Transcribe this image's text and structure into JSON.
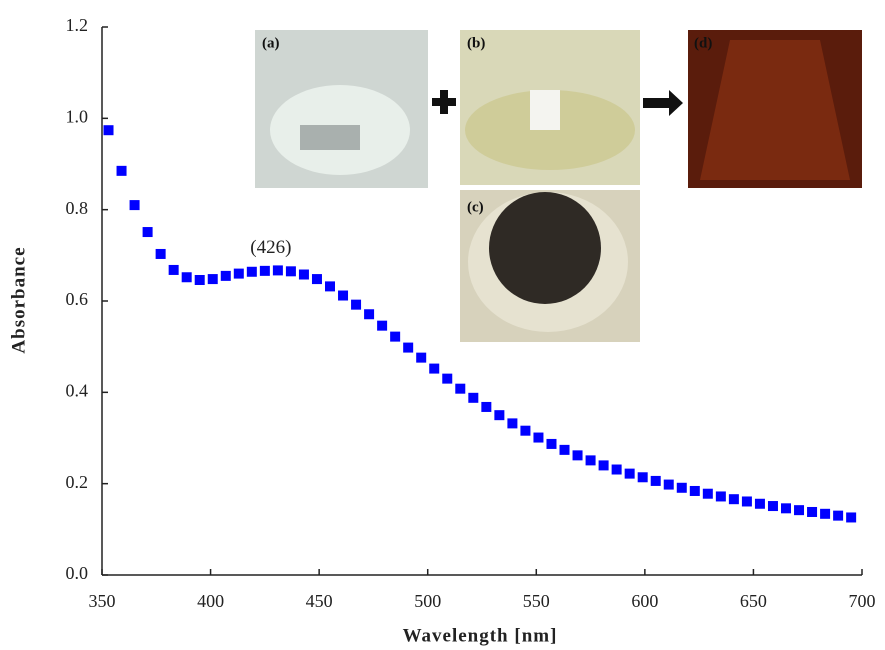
{
  "chart_data": {
    "type": "scatter",
    "x_label": "Wavelength [nm]",
    "y_label": "Absorbance",
    "annotation": "(426)",
    "insets": [
      "(a)",
      "(b)",
      "(c)",
      "(d)"
    ],
    "color": "#0000ff",
    "xlim": [
      350,
      700
    ],
    "ylim": [
      0,
      1.2
    ],
    "xticks": [
      350,
      400,
      450,
      500,
      550,
      600,
      650,
      700
    ],
    "yticks": [
      {
        "value": 0,
        "label": "0.0"
      },
      0.2,
      0.4,
      0.6,
      0.8,
      {
        "value": 1,
        "label": "1.0"
      },
      1.2
    ],
    "x": [
      353,
      359,
      365,
      371,
      377,
      383,
      389,
      395,
      401,
      407,
      413,
      419,
      425,
      431,
      437,
      443,
      449,
      455,
      461,
      467,
      473,
      479,
      485,
      491,
      497,
      503,
      509,
      515,
      521,
      527,
      533,
      539,
      545,
      551,
      557,
      563,
      569,
      575,
      581,
      587,
      593,
      599,
      605,
      611,
      617,
      623,
      629,
      635,
      641,
      647,
      653,
      659,
      665,
      671,
      677,
      683,
      689,
      695
    ],
    "values": [
      0.974,
      0.885,
      0.81,
      0.751,
      0.703,
      0.668,
      0.652,
      0.646,
      0.648,
      0.655,
      0.66,
      0.664,
      0.666,
      0.667,
      0.665,
      0.658,
      0.648,
      0.632,
      0.612,
      0.592,
      0.571,
      0.546,
      0.522,
      0.498,
      0.476,
      0.452,
      0.43,
      0.408,
      0.388,
      0.368,
      0.35,
      0.332,
      0.316,
      0.301,
      0.287,
      0.274,
      0.262,
      0.251,
      0.24,
      0.231,
      0.222,
      0.214,
      0.206,
      0.198,
      0.191,
      0.184,
      0.178,
      0.172,
      0.166,
      0.161,
      0.156,
      0.151,
      0.146,
      0.142,
      0.138,
      0.134,
      0.13,
      0.126
    ]
  }
}
